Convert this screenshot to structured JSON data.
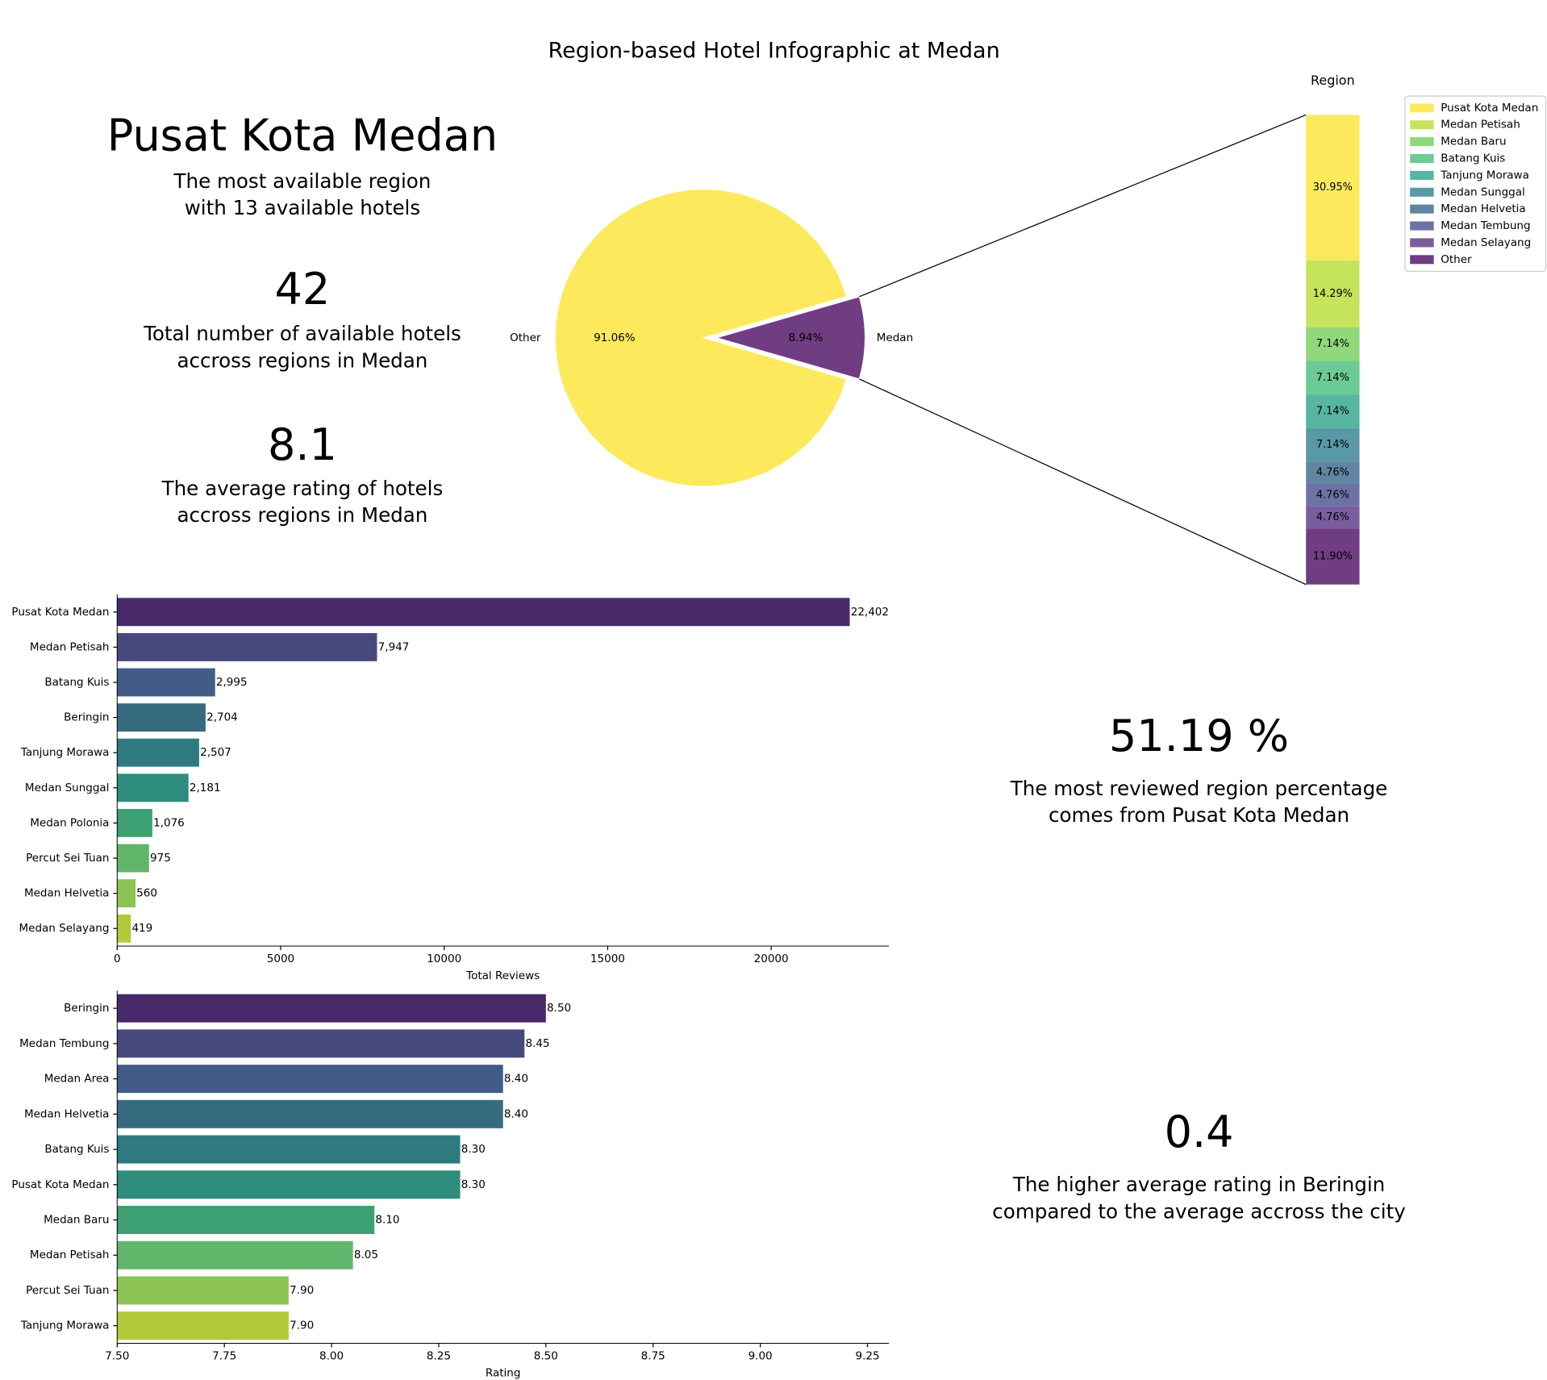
{
  "title": "Region-based Hotel Infographic at Medan",
  "kpis": [
    {
      "headline": "Pusat Kota Medan",
      "color": "#008000",
      "caption": [
        "The most available region",
        "with 13 available hotels"
      ]
    },
    {
      "headline": "42",
      "color": "#0000ff",
      "caption": [
        "Total number of available hotels",
        "accross regions in Medan"
      ]
    },
    {
      "headline": "8.1",
      "color": "#ff0000",
      "caption": [
        "The average rating of hotels",
        "accross regions in Medan"
      ]
    },
    {
      "headline": "51.19 %",
      "color": "#3d0a52",
      "caption": [
        "The most reviewed region percentage",
        "comes from Pusat Kota Medan"
      ]
    },
    {
      "headline": "0.4",
      "color": "#3d0a52",
      "caption": [
        "The higher average rating in Beringin",
        "compared to the average accross the city"
      ]
    }
  ],
  "chart_data": [
    {
      "type": "pie",
      "categories": [
        "Other",
        "Medan"
      ],
      "values": [
        91.06,
        8.94
      ],
      "value_labels": [
        "91.06%",
        "8.94%"
      ],
      "colors": [
        "#fcea5c",
        "#713d82"
      ]
    },
    {
      "type": "stacked-bar",
      "title": "Region",
      "legend": "upper right",
      "series": [
        {
          "name": "Pusat Kota Medan",
          "color": "#fcea5c",
          "values": [
            30.95
          ],
          "value_labels": [
            "30.95%"
          ]
        },
        {
          "name": "Medan Petisah",
          "color": "#c6e35c",
          "values": [
            14.29
          ],
          "value_labels": [
            "14.29%"
          ]
        },
        {
          "name": "Medan Baru",
          "color": "#8fd97a",
          "values": [
            7.14
          ],
          "value_labels": [
            "7.14%"
          ]
        },
        {
          "name": "Batang Kuis",
          "color": "#6ccb94",
          "values": [
            7.14
          ],
          "value_labels": [
            "7.14%"
          ]
        },
        {
          "name": "Tanjung Morawa",
          "color": "#56b6a1",
          "values": [
            7.14
          ],
          "value_labels": [
            "7.14%"
          ]
        },
        {
          "name": "Medan Sunggal",
          "color": "#5999a6",
          "values": [
            7.14
          ],
          "value_labels": [
            "7.14%"
          ]
        },
        {
          "name": "Medan Helvetia",
          "color": "#6084a1",
          "values": [
            4.76
          ],
          "value_labels": [
            "4.76%"
          ]
        },
        {
          "name": "Medan Tembung",
          "color": "#6d72a5",
          "values": [
            4.76
          ],
          "value_labels": [
            "4.76%"
          ]
        },
        {
          "name": "Medan Selayang",
          "color": "#7a5d9f",
          "values": [
            4.76
          ],
          "value_labels": [
            "4.76%"
          ]
        },
        {
          "name": "Other",
          "color": "#713d82",
          "values": [
            11.9
          ],
          "value_labels": [
            "11.90%"
          ]
        }
      ]
    },
    {
      "type": "barh",
      "xlabel": "Total Reviews",
      "categories": [
        "Pusat Kota Medan",
        "Medan Petisah",
        "Batang Kuis",
        "Beringin",
        "Tanjung Morawa",
        "Medan Sunggal",
        "Medan Polonia",
        "Percut Sei Tuan",
        "Medan Helvetia",
        "Medan Selayang"
      ],
      "values": [
        22402,
        7947,
        2995,
        2704,
        2507,
        2181,
        1076,
        975,
        560,
        419
      ],
      "value_labels": [
        "22,402",
        "7,947",
        "2,995",
        "2,704",
        "2,507",
        "2,181",
        "1,076",
        "975",
        "560",
        "419"
      ],
      "colors": [
        "#482a6b",
        "#47497c",
        "#405c87",
        "#366b7f",
        "#2f7a80",
        "#2e8c7c",
        "#3da073",
        "#62b66b",
        "#8bc454",
        "#b2c93a"
      ],
      "xlim": [
        0,
        23600
      ],
      "xticks": [
        0,
        5000,
        10000,
        15000,
        20000
      ]
    },
    {
      "type": "barh",
      "xlabel": "Rating",
      "categories": [
        "Beringin",
        "Medan Tembung",
        "Medan Area",
        "Medan Helvetia",
        "Batang Kuis",
        "Pusat Kota Medan",
        "Medan Baru",
        "Medan Petisah",
        "Percut Sei Tuan",
        "Tanjung Morawa"
      ],
      "values": [
        8.5,
        8.45,
        8.4,
        8.4,
        8.3,
        8.3,
        8.1,
        8.05,
        7.9,
        7.9
      ],
      "value_labels": [
        "8.50",
        "8.45",
        "8.40",
        "8.40",
        "8.30",
        "8.30",
        "8.10",
        "8.05",
        "7.90",
        "7.90"
      ],
      "colors": [
        "#482a6b",
        "#47497c",
        "#405c87",
        "#366b7f",
        "#2f7a80",
        "#2e8c7c",
        "#3da073",
        "#62b66b",
        "#8bc454",
        "#b2c93a"
      ],
      "xlim": [
        7.5,
        9.3
      ],
      "xticks": [
        {
          "value": 7.5,
          "label": "7.50"
        },
        7.75,
        {
          "value": 8,
          "label": "8.00"
        },
        8.25,
        {
          "value": 8.5,
          "label": "8.50"
        },
        8.75,
        {
          "value": 9,
          "label": "9.00"
        },
        9.25
      ]
    }
  ]
}
